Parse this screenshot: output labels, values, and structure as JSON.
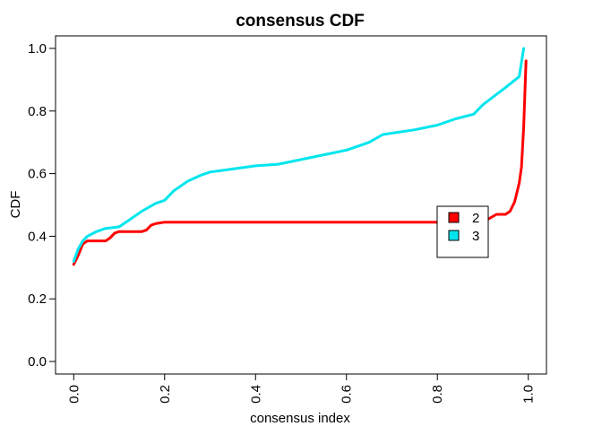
{
  "chart_data": {
    "type": "line",
    "title": "consensus CDF",
    "xlabel": "consensus index",
    "ylabel": "CDF",
    "xlim": [
      -0.04,
      1.04
    ],
    "ylim": [
      -0.04,
      1.04
    ],
    "x_ticks": [
      "0.0",
      "0.2",
      "0.4",
      "0.6",
      "0.8",
      "1.0"
    ],
    "y_ticks": [
      "0.0",
      "0.2",
      "0.4",
      "0.6",
      "0.8",
      "1.0"
    ],
    "grid": false,
    "legend_position": "center-right",
    "series": [
      {
        "name": "2",
        "color": "#ff0000",
        "x": [
          0.0,
          0.01,
          0.02,
          0.03,
          0.05,
          0.07,
          0.08,
          0.09,
          0.1,
          0.12,
          0.14,
          0.15,
          0.16,
          0.17,
          0.18,
          0.2,
          0.3,
          0.5,
          0.7,
          0.8,
          0.85,
          0.9,
          0.93,
          0.95,
          0.96,
          0.97,
          0.98,
          0.985,
          0.99,
          0.995
        ],
        "y": [
          0.31,
          0.34,
          0.375,
          0.385,
          0.385,
          0.385,
          0.395,
          0.41,
          0.415,
          0.415,
          0.415,
          0.415,
          0.42,
          0.435,
          0.44,
          0.445,
          0.445,
          0.445,
          0.445,
          0.445,
          0.445,
          0.445,
          0.47,
          0.47,
          0.48,
          0.51,
          0.57,
          0.62,
          0.75,
          0.96
        ]
      },
      {
        "name": "3",
        "color": "#00e5ee",
        "x": [
          0.0,
          0.01,
          0.02,
          0.03,
          0.05,
          0.07,
          0.1,
          0.12,
          0.15,
          0.18,
          0.2,
          0.22,
          0.25,
          0.28,
          0.3,
          0.35,
          0.4,
          0.45,
          0.5,
          0.55,
          0.6,
          0.65,
          0.68,
          0.75,
          0.8,
          0.82,
          0.84,
          0.88,
          0.9,
          0.95,
          0.98,
          0.99
        ],
        "y": [
          0.32,
          0.36,
          0.385,
          0.4,
          0.415,
          0.425,
          0.43,
          0.45,
          0.48,
          0.505,
          0.515,
          0.545,
          0.575,
          0.595,
          0.605,
          0.615,
          0.625,
          0.63,
          0.645,
          0.66,
          0.675,
          0.7,
          0.725,
          0.74,
          0.755,
          0.765,
          0.775,
          0.79,
          0.82,
          0.875,
          0.91,
          1.0
        ]
      }
    ]
  }
}
